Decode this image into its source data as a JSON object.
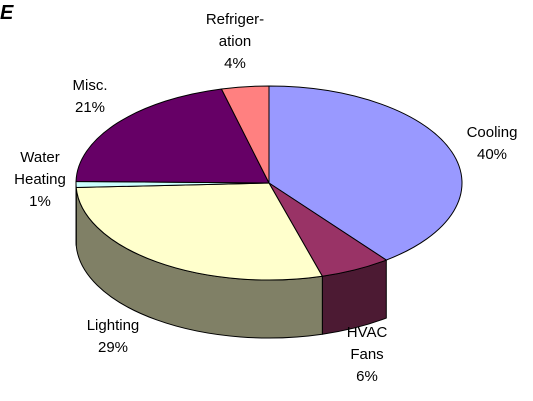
{
  "corner_text": "E",
  "chart_data": {
    "type": "pie",
    "style": "3d",
    "slices": [
      {
        "name": "Cooling",
        "lines": [
          "Cooling",
          "40%"
        ],
        "value": 40,
        "color": "#9999ff",
        "side": "#4d4d80"
      },
      {
        "name": "HVAC Fans",
        "lines": [
          "HVAC",
          "Fans",
          "6%"
        ],
        "value": 6,
        "color": "#993366",
        "side": "#4c1a33"
      },
      {
        "name": "Lighting",
        "lines": [
          "Lighting",
          "29%"
        ],
        "value": 29,
        "color": "#ffffcc",
        "side": "#808066"
      },
      {
        "name": "Water Heating",
        "lines": [
          "Water",
          "Heating",
          "1%"
        ],
        "value": 1,
        "color": "#ccffff",
        "side": "#668080"
      },
      {
        "name": "Misc.",
        "lines": [
          "Misc.",
          "21%"
        ],
        "value": 21,
        "color": "#660066",
        "side": "#330033"
      },
      {
        "name": "Refrigeration",
        "lines": [
          "Refriger-",
          "ation",
          "4%"
        ],
        "value": 4,
        "color": "#ff8080",
        "side": "#804040"
      }
    ]
  }
}
